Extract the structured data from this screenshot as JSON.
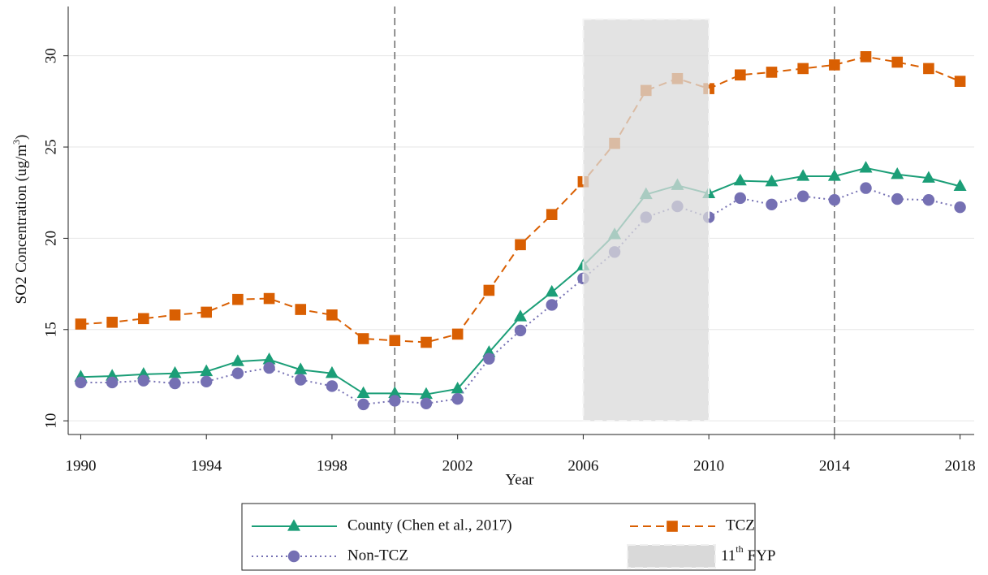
{
  "chart_data": {
    "type": "line",
    "xlabel": "Year",
    "ylabel_parts": [
      "SO2 Concentration (ug/m",
      "3",
      ")"
    ],
    "x": [
      1990,
      1991,
      1992,
      1993,
      1994,
      1995,
      1996,
      1997,
      1998,
      1999,
      2000,
      2001,
      2002,
      2003,
      2004,
      2005,
      2006,
      2007,
      2008,
      2009,
      2010,
      2011,
      2012,
      2013,
      2014,
      2015,
      2016,
      2017,
      2018
    ],
    "series": [
      {
        "name": "County (Chen et al., 2017)",
        "color": "#1b9e77",
        "marker": "triangle",
        "dash": "solid",
        "values": [
          12.4,
          12.45,
          12.55,
          12.6,
          12.7,
          13.25,
          13.35,
          12.8,
          12.6,
          11.5,
          11.5,
          11.45,
          11.75,
          13.75,
          15.7,
          17.05,
          18.5,
          20.2,
          22.4,
          22.9,
          22.45,
          23.15,
          23.1,
          23.4,
          23.4,
          23.85,
          23.5,
          23.3,
          22.85
        ]
      },
      {
        "name": "TCZ",
        "color": "#d95f02",
        "marker": "square",
        "dash": "dashed",
        "values": [
          15.3,
          15.4,
          15.6,
          15.8,
          15.95,
          16.65,
          16.7,
          16.1,
          15.8,
          14.5,
          14.4,
          14.3,
          14.75,
          17.15,
          19.65,
          21.3,
          23.1,
          25.2,
          28.1,
          28.75,
          28.2,
          28.95,
          29.1,
          29.3,
          29.5,
          29.95,
          29.65,
          29.3,
          28.6
        ]
      },
      {
        "name": "Non-TCZ",
        "color": "#7570b3",
        "marker": "circle",
        "dash": "dotted",
        "values": [
          12.1,
          12.1,
          12.2,
          12.05,
          12.15,
          12.6,
          12.9,
          12.25,
          11.9,
          10.9,
          11.1,
          10.95,
          11.2,
          13.4,
          14.95,
          16.35,
          17.8,
          19.25,
          21.15,
          21.75,
          21.15,
          22.2,
          21.85,
          22.3,
          22.1,
          22.75,
          22.15,
          22.1,
          21.7
        ]
      }
    ],
    "shaded_region": {
      "x": [
        2006,
        2010
      ],
      "y": [
        10,
        32
      ],
      "color": "#d9d9d9",
      "name_parts": [
        "11",
        "th",
        "FYP"
      ]
    },
    "vlines": [
      2000,
      2014
    ],
    "xlim": [
      1989.6,
      2018.45
    ],
    "ylim": [
      9.25,
      32.7
    ],
    "xticks": [
      1990,
      1994,
      1998,
      2002,
      2006,
      2010,
      2014,
      2018
    ],
    "yticks": [
      10,
      15,
      20,
      25,
      30
    ],
    "grid": true
  }
}
